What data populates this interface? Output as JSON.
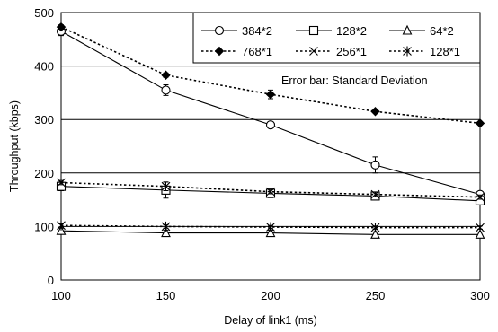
{
  "chart_data": {
    "type": "line",
    "xlabel": "Delay of link1 (ms)",
    "ylabel": "Throughput (kbps)",
    "x": [
      100,
      150,
      200,
      250,
      300
    ],
    "xticks": [
      100,
      150,
      200,
      250,
      300
    ],
    "yticks": [
      0,
      100,
      200,
      300,
      400,
      500
    ],
    "xlim": [
      100,
      300
    ],
    "ylim": [
      0,
      500
    ],
    "grid": "horizontal",
    "legend_position": "top-right",
    "annotation": "Error bar: Standard Deviation",
    "series": [
      {
        "name": "384*2",
        "marker": "circle-open",
        "line": "solid",
        "values": [
          465,
          355,
          290,
          215,
          160
        ],
        "errors": [
          8,
          10,
          4,
          15,
          5
        ]
      },
      {
        "name": "128*2",
        "marker": "square-open",
        "line": "solid",
        "values": [
          175,
          168,
          162,
          157,
          148
        ],
        "errors": [
          8,
          15,
          8,
          6,
          8
        ]
      },
      {
        "name": "64*2",
        "marker": "triangle-open",
        "line": "solid",
        "values": [
          92,
          88,
          88,
          85,
          85
        ],
        "errors": [
          5,
          5,
          5,
          5,
          5
        ]
      },
      {
        "name": "768*1",
        "marker": "diamond-filled",
        "line": "dotted",
        "values": [
          473,
          383,
          347,
          315,
          293
        ],
        "errors": [
          4,
          4,
          8,
          3,
          3
        ]
      },
      {
        "name": "256*1",
        "marker": "x",
        "line": "dotted",
        "values": [
          182,
          175,
          165,
          160,
          155
        ],
        "errors": [
          4,
          8,
          4,
          4,
          4
        ]
      },
      {
        "name": "128*1",
        "marker": "star",
        "line": "dotted",
        "values": [
          102,
          100,
          99,
          98,
          98
        ],
        "errors": [
          3,
          3,
          3,
          3,
          3
        ]
      }
    ]
  }
}
